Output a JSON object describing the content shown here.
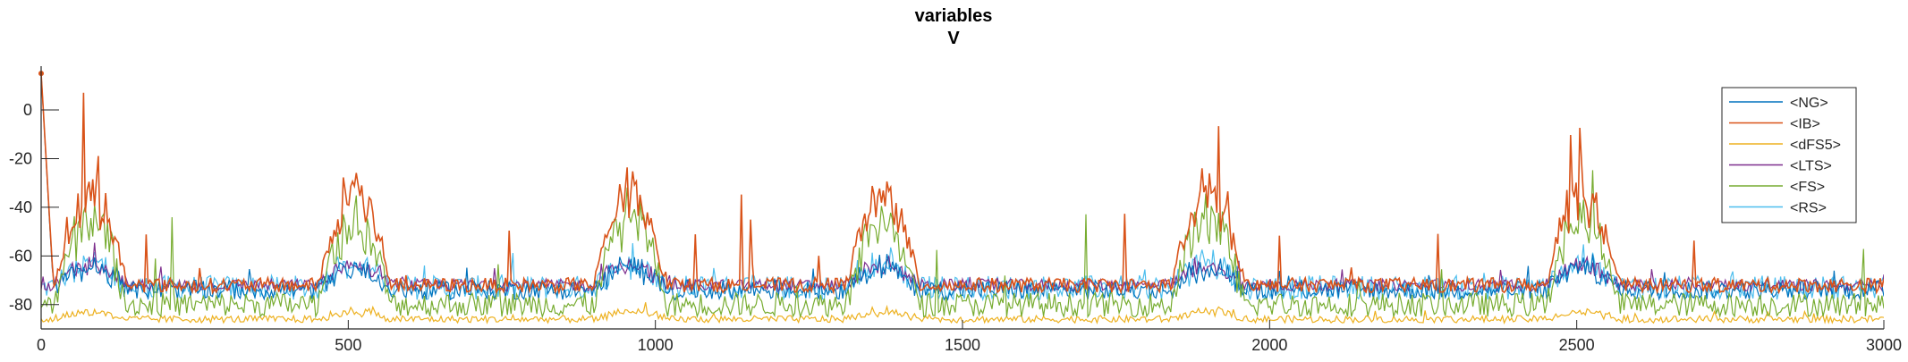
{
  "chart_data": {
    "type": "line",
    "title": "variables",
    "subtitle": "V",
    "xlabel": "",
    "ylabel": "",
    "xlim": [
      0,
      3000
    ],
    "ylim": [
      -90,
      18
    ],
    "xticks": [
      0,
      500,
      1000,
      1500,
      2000,
      2500,
      3000
    ],
    "yticks": [
      0,
      -20,
      -40,
      -60,
      -80
    ],
    "grid": false,
    "legend": "top-right",
    "bursts": [
      80,
      510,
      960,
      1370,
      1900,
      2510
    ],
    "series": [
      {
        "name": "<NG>",
        "color": "#0072BD",
        "baseline": -74,
        "noise": 4,
        "peak": -62
      },
      {
        "name": "<IB>",
        "color": "#D95319",
        "baseline": -72,
        "noise": 3,
        "peak": -24
      },
      {
        "name": "<dFS5>",
        "color": "#EDB120",
        "baseline": -86,
        "noise": 1.5,
        "peak": -82
      },
      {
        "name": "<LTS>",
        "color": "#7E2F8E",
        "baseline": -72,
        "noise": 2.5,
        "peak": -62
      },
      {
        "name": "<FS>",
        "color": "#77AC30",
        "baseline": -80,
        "noise": 5,
        "peak": -35
      },
      {
        "name": "<RS>",
        "color": "#4DBEEE",
        "baseline": -73,
        "noise": 5,
        "peak": -60
      }
    ]
  }
}
